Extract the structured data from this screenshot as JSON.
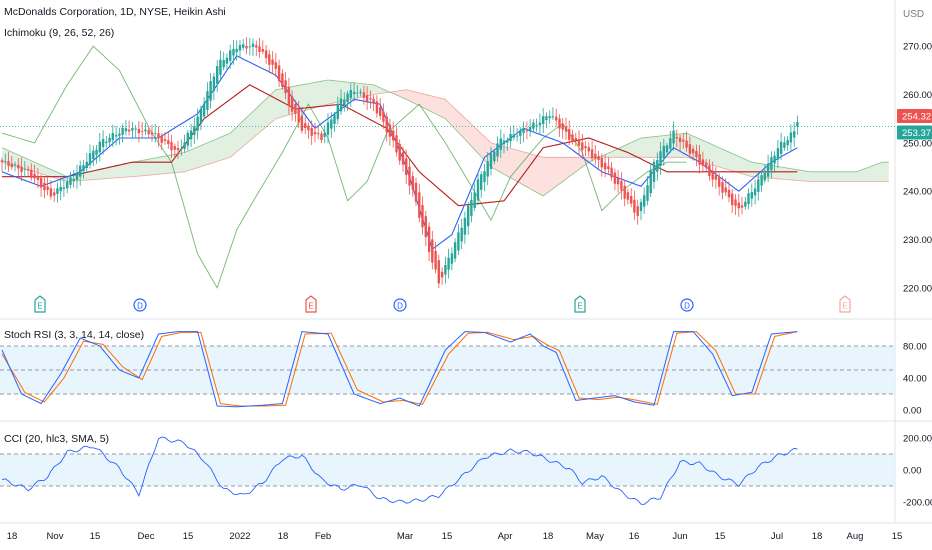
{
  "header": {
    "title": "McDonalds Corporation, 1D, NYSE, Heikin Ashi",
    "indicator": "Ichimoku (9, 26, 52, 26)",
    "currency": "USD"
  },
  "price_pane": {
    "ticks": [
      "270.00",
      "260.00",
      "250.00",
      "240.00",
      "230.00",
      "220.00"
    ],
    "badges": [
      {
        "text": "254.32",
        "value": 254.32,
        "color": "#ef5350"
      },
      {
        "text": "253.37",
        "value": 253.37,
        "color": "#26a69a"
      }
    ]
  },
  "events": [
    {
      "letter": "E",
      "x": 40,
      "color": "#26a69a"
    },
    {
      "letter": "D",
      "x": 140,
      "color": "#2962ff"
    },
    {
      "letter": "E",
      "x": 311,
      "color": "#ef5350"
    },
    {
      "letter": "D",
      "x": 400,
      "color": "#2962ff"
    },
    {
      "letter": "E",
      "x": 580,
      "color": "#26a69a"
    },
    {
      "letter": "D",
      "x": 687,
      "color": "#2962ff"
    },
    {
      "letter": "E",
      "x": 845,
      "color": "#f4a7a3"
    }
  ],
  "stoch_pane": {
    "title": "Stoch RSI (3, 3, 14, 14, close)",
    "ticks": [
      "80.00",
      "40.00",
      "0.00"
    ]
  },
  "cci_pane": {
    "title": "CCI (20, hlc3, SMA, 5)",
    "ticks": [
      "200.00",
      "0.00",
      "-200.00"
    ]
  },
  "x_axis": {
    "labels": [
      "18",
      "Nov",
      "15",
      "Dec",
      "15",
      "2022",
      "18",
      "Feb",
      "Mar",
      "15",
      "Apr",
      "18",
      "May",
      "16",
      "Jun",
      "15",
      "Jul",
      "18",
      "Aug",
      "15"
    ]
  },
  "colors": {
    "up": "#26a69a",
    "down": "#ef5350",
    "tenkan": "#2962ff",
    "kijun": "#b71c1c",
    "lagging": "#43a047",
    "band_fill": "#e3f2fd"
  },
  "chart_data": [
    {
      "type": "candlestick",
      "title": "McDonalds Corporation, 1D, NYSE, Heikin Ashi",
      "ylabel": "USD",
      "ylim": [
        215,
        275
      ],
      "y_ticks": [
        270,
        260,
        250,
        240,
        230,
        220
      ],
      "close_anchors": [
        [
          0,
          246
        ],
        [
          8,
          244
        ],
        [
          15,
          239
        ],
        [
          22,
          243
        ],
        [
          30,
          250
        ],
        [
          38,
          253
        ],
        [
          46,
          252
        ],
        [
          54,
          248
        ],
        [
          60,
          255
        ],
        [
          66,
          266
        ],
        [
          72,
          270
        ],
        [
          78,
          270
        ],
        [
          84,
          265
        ],
        [
          88,
          258
        ],
        [
          92,
          253
        ],
        [
          98,
          251
        ],
        [
          104,
          259
        ],
        [
          108,
          261
        ],
        [
          114,
          258
        ],
        [
          120,
          250
        ],
        [
          126,
          240
        ],
        [
          130,
          230
        ],
        [
          134,
          221
        ],
        [
          140,
          231
        ],
        [
          146,
          242
        ],
        [
          152,
          250
        ],
        [
          158,
          252
        ],
        [
          164,
          254
        ],
        [
          168,
          256
        ],
        [
          174,
          251
        ],
        [
          180,
          248
        ],
        [
          186,
          244
        ],
        [
          190,
          240
        ],
        [
          195,
          235
        ],
        [
          200,
          246
        ],
        [
          206,
          252
        ],
        [
          210,
          249
        ],
        [
          214,
          246
        ],
        [
          220,
          241
        ],
        [
          226,
          236
        ],
        [
          232,
          242
        ],
        [
          238,
          249
        ],
        [
          244,
          253
        ]
      ],
      "last_open": 253.37,
      "last_close": 254.32,
      "tenkan_anchors": [
        [
          0,
          244
        ],
        [
          12,
          241
        ],
        [
          24,
          244
        ],
        [
          36,
          251
        ],
        [
          48,
          251
        ],
        [
          60,
          256
        ],
        [
          72,
          268
        ],
        [
          84,
          264
        ],
        [
          96,
          253
        ],
        [
          108,
          259
        ],
        [
          116,
          258
        ],
        [
          124,
          245
        ],
        [
          132,
          228
        ],
        [
          138,
          231
        ],
        [
          148,
          247
        ],
        [
          160,
          253
        ],
        [
          172,
          250
        ],
        [
          184,
          244
        ],
        [
          196,
          241
        ],
        [
          206,
          249
        ],
        [
          214,
          246
        ],
        [
          226,
          240
        ],
        [
          236,
          246
        ],
        [
          244,
          249
        ]
      ],
      "kijun_anchors": [
        [
          0,
          243
        ],
        [
          20,
          243
        ],
        [
          40,
          246
        ],
        [
          52,
          246
        ],
        [
          62,
          255
        ],
        [
          76,
          262
        ],
        [
          90,
          257
        ],
        [
          104,
          258
        ],
        [
          118,
          253
        ],
        [
          128,
          244
        ],
        [
          140,
          237
        ],
        [
          154,
          238
        ],
        [
          166,
          249
        ],
        [
          180,
          251
        ],
        [
          192,
          248
        ],
        [
          204,
          244
        ],
        [
          220,
          244
        ],
        [
          236,
          244
        ],
        [
          244,
          244
        ]
      ],
      "span_a_anchors": [
        [
          0,
          249
        ],
        [
          20,
          243
        ],
        [
          40,
          246
        ],
        [
          56,
          248
        ],
        [
          70,
          252
        ],
        [
          84,
          261
        ],
        [
          100,
          263
        ],
        [
          114,
          262
        ],
        [
          124,
          259
        ],
        [
          136,
          255
        ],
        [
          150,
          245
        ],
        [
          166,
          239
        ],
        [
          180,
          246
        ],
        [
          196,
          251
        ],
        [
          210,
          252
        ],
        [
          230,
          246
        ],
        [
          248,
          244
        ],
        [
          262,
          244
        ],
        [
          270,
          246
        ]
      ],
      "span_b_anchors": [
        [
          0,
          246
        ],
        [
          20,
          242
        ],
        [
          40,
          243
        ],
        [
          56,
          244
        ],
        [
          70,
          247
        ],
        [
          84,
          255
        ],
        [
          100,
          258
        ],
        [
          114,
          260
        ],
        [
          124,
          261
        ],
        [
          136,
          259
        ],
        [
          150,
          250
        ],
        [
          166,
          247
        ],
        [
          180,
          247
        ],
        [
          196,
          247
        ],
        [
          210,
          247
        ],
        [
          230,
          243
        ],
        [
          248,
          242
        ],
        [
          262,
          242
        ],
        [
          270,
          242
        ]
      ],
      "lagging_anchors": [
        [
          0,
          252
        ],
        [
          10,
          250
        ],
        [
          20,
          262
        ],
        [
          28,
          270
        ],
        [
          36,
          265
        ],
        [
          46,
          252
        ],
        [
          52,
          246
        ],
        [
          60,
          227
        ],
        [
          66,
          220
        ],
        [
          72,
          232
        ],
        [
          78,
          239
        ],
        [
          86,
          248
        ],
        [
          94,
          258
        ],
        [
          100,
          251
        ],
        [
          106,
          238
        ],
        [
          112,
          242
        ],
        [
          118,
          252
        ],
        [
          128,
          258
        ],
        [
          136,
          250
        ],
        [
          144,
          241
        ],
        [
          150,
          234
        ],
        [
          156,
          243
        ],
        [
          166,
          251
        ],
        [
          172,
          254
        ],
        [
          178,
          248
        ],
        [
          184,
          236
        ],
        [
          190,
          240
        ],
        [
          198,
          244
        ],
        [
          204,
          246
        ],
        [
          210,
          246
        ]
      ],
      "n_candles": 245
    },
    {
      "type": "line",
      "title": "Stoch RSI (3, 3, 14, 14, close)",
      "ylim": [
        0,
        100
      ],
      "y_ticks": [
        80,
        40,
        0
      ],
      "bands": [
        80,
        50,
        20
      ],
      "k_anchors": [
        [
          0,
          75
        ],
        [
          6,
          20
        ],
        [
          12,
          8
        ],
        [
          18,
          45
        ],
        [
          24,
          90
        ],
        [
          30,
          80
        ],
        [
          36,
          50
        ],
        [
          42,
          40
        ],
        [
          48,
          95
        ],
        [
          54,
          98
        ],
        [
          60,
          98
        ],
        [
          66,
          5
        ],
        [
          72,
          4
        ],
        [
          80,
          6
        ],
        [
          86,
          8
        ],
        [
          92,
          98
        ],
        [
          100,
          95
        ],
        [
          108,
          20
        ],
        [
          116,
          8
        ],
        [
          122,
          15
        ],
        [
          128,
          5
        ],
        [
          136,
          75
        ],
        [
          142,
          98
        ],
        [
          148,
          97
        ],
        [
          156,
          85
        ],
        [
          162,
          95
        ],
        [
          166,
          80
        ],
        [
          170,
          72
        ],
        [
          176,
          12
        ],
        [
          182,
          15
        ],
        [
          188,
          18
        ],
        [
          194,
          10
        ],
        [
          200,
          6
        ],
        [
          206,
          98
        ],
        [
          212,
          98
        ],
        [
          218,
          70
        ],
        [
          224,
          18
        ],
        [
          230,
          22
        ],
        [
          236,
          95
        ],
        [
          244,
          98
        ]
      ],
      "d_anchors": [
        [
          0,
          70
        ],
        [
          7,
          22
        ],
        [
          13,
          10
        ],
        [
          19,
          40
        ],
        [
          25,
          86
        ],
        [
          31,
          82
        ],
        [
          37,
          54
        ],
        [
          43,
          38
        ],
        [
          49,
          92
        ],
        [
          55,
          97
        ],
        [
          61,
          97
        ],
        [
          67,
          8
        ],
        [
          73,
          5
        ],
        [
          81,
          5
        ],
        [
          87,
          6
        ],
        [
          93,
          95
        ],
        [
          101,
          96
        ],
        [
          109,
          25
        ],
        [
          117,
          10
        ],
        [
          123,
          12
        ],
        [
          129,
          7
        ],
        [
          137,
          70
        ],
        [
          143,
          96
        ],
        [
          149,
          97
        ],
        [
          157,
          88
        ],
        [
          163,
          92
        ],
        [
          167,
          82
        ],
        [
          171,
          74
        ],
        [
          177,
          15
        ],
        [
          183,
          13
        ],
        [
          189,
          16
        ],
        [
          195,
          12
        ],
        [
          201,
          7
        ],
        [
          207,
          96
        ],
        [
          213,
          98
        ],
        [
          219,
          74
        ],
        [
          225,
          20
        ],
        [
          231,
          20
        ],
        [
          237,
          92
        ],
        [
          244,
          98
        ]
      ]
    },
    {
      "type": "line",
      "title": "CCI (20, hlc3, SMA, 5)",
      "ylim": [
        -250,
        230
      ],
      "y_ticks": [
        200,
        0,
        -200
      ],
      "bands": [
        100,
        -100
      ],
      "anchors": [
        [
          0,
          -60
        ],
        [
          8,
          -120
        ],
        [
          14,
          -40
        ],
        [
          20,
          110
        ],
        [
          28,
          150
        ],
        [
          36,
          10
        ],
        [
          42,
          -150
        ],
        [
          48,
          200
        ],
        [
          56,
          170
        ],
        [
          62,
          60
        ],
        [
          68,
          -120
        ],
        [
          74,
          -160
        ],
        [
          80,
          -80
        ],
        [
          86,
          70
        ],
        [
          92,
          90
        ],
        [
          98,
          -60
        ],
        [
          104,
          -120
        ],
        [
          110,
          -90
        ],
        [
          116,
          -180
        ],
        [
          122,
          -200
        ],
        [
          128,
          -190
        ],
        [
          134,
          -160
        ],
        [
          140,
          -60
        ],
        [
          148,
          80
        ],
        [
          156,
          120
        ],
        [
          162,
          110
        ],
        [
          168,
          60
        ],
        [
          174,
          10
        ],
        [
          178,
          -80
        ],
        [
          184,
          -40
        ],
        [
          190,
          -140
        ],
        [
          196,
          -210
        ],
        [
          202,
          -170
        ],
        [
          208,
          50
        ],
        [
          214,
          40
        ],
        [
          220,
          -40
        ],
        [
          226,
          -90
        ],
        [
          232,
          20
        ],
        [
          238,
          90
        ],
        [
          244,
          130
        ],
        [
          248,
          120
        ]
      ]
    }
  ]
}
